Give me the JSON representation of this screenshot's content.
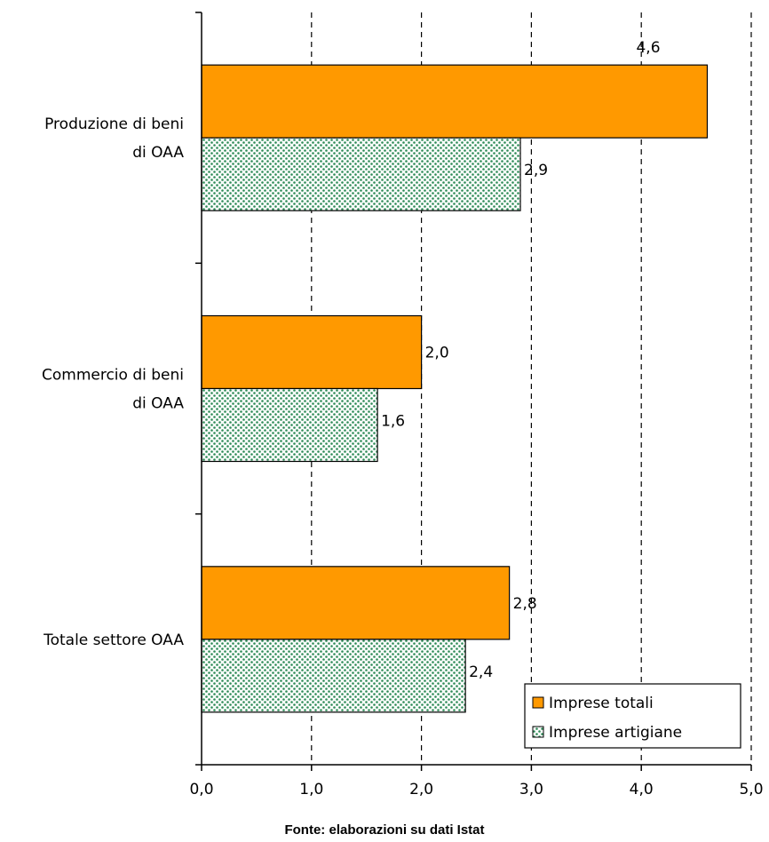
{
  "chart_data": {
    "type": "bar",
    "orientation": "horizontal",
    "categories": [
      [
        "Produzione di beni",
        "di OAA"
      ],
      [
        "Commercio di beni",
        "di OAA"
      ],
      [
        "Totale settore OAA"
      ]
    ],
    "series": [
      {
        "name": "Imprese totali",
        "values": [
          4.6,
          2.0,
          2.8
        ],
        "labels": [
          "4,6",
          "2,0",
          "2,8"
        ],
        "color": "#ff9900",
        "pattern": "solid"
      },
      {
        "name": "Imprese artigiane",
        "values": [
          2.9,
          1.6,
          2.4
        ],
        "labels": [
          "2,9",
          "1,6",
          "2,4"
        ],
        "color": "#2e8b57",
        "pattern": "dotted"
      }
    ],
    "xlim": [
      0,
      5
    ],
    "xticks": [
      "0,0",
      "1,0",
      "2,0",
      "3,0",
      "4,0",
      "5,0"
    ],
    "grid": "vertical dashed",
    "legend": "bottom-right"
  },
  "source": "Fonte: elaborazioni su dati Istat"
}
